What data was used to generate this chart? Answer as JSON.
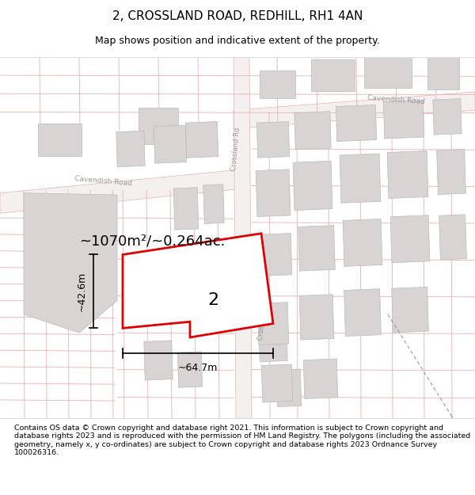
{
  "title": "2, CROSSLAND ROAD, REDHILL, RH1 4AN",
  "subtitle": "Map shows position and indicative extent of the property.",
  "footer": "Contains OS data © Crown copyright and database right 2021. This information is subject to Crown copyright and database rights 2023 and is reproduced with the permission of HM Land Registry. The polygons (including the associated geometry, namely x, y co-ordinates) are subject to Crown copyright and database rights 2023 Ordnance Survey 100026316.",
  "bg_color": "#ffffff",
  "map_bg": "#ffffff",
  "cadastral_color": "#e8b0b0",
  "road_label_color": "#999999",
  "building_fill": "#d8d4d4",
  "building_edge": "#bbbbbb",
  "highlight_fill": "#ffffff",
  "highlight_edge": "#dd0000",
  "highlight_lw": 2.0,
  "area_text": "~1070m²/~0.264ac.",
  "width_label": "~64.7m",
  "height_label": "~42.6m",
  "plot_number": "2",
  "title_fontsize": 11,
  "subtitle_fontsize": 9,
  "footer_fontsize": 6.8
}
